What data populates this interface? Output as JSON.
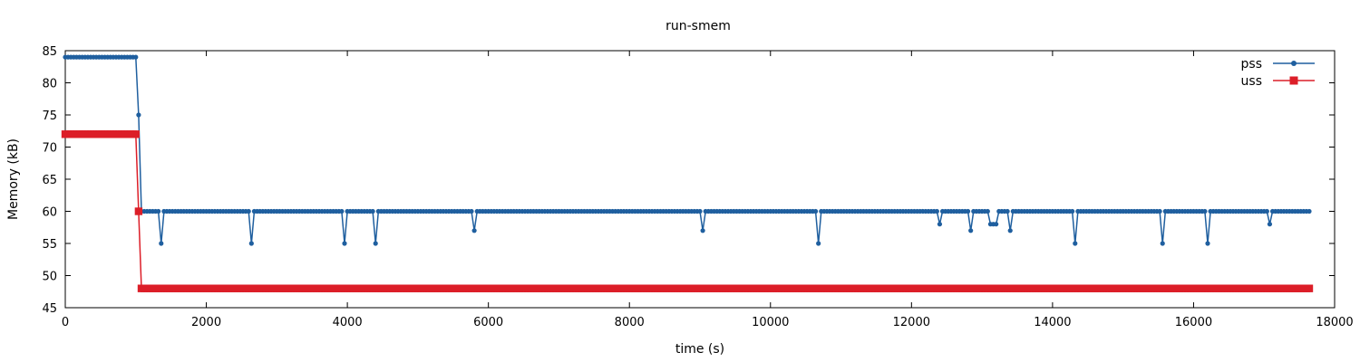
{
  "chart_data": {
    "type": "line",
    "title": "run-smem",
    "xlabel": "time (s)",
    "ylabel": "Memory (kB)",
    "xlim": [
      0,
      18000
    ],
    "ylim": [
      45,
      85
    ],
    "xticks": [
      "0",
      "2000",
      "4000",
      "6000",
      "8000",
      "10000",
      "12000",
      "14000",
      "16000",
      "18000"
    ],
    "yticks": [
      "45",
      "50",
      "55",
      "60",
      "65",
      "70",
      "75",
      "80",
      "85"
    ],
    "grid": false,
    "legend_position": "top-right",
    "series": [
      {
        "name": "pss",
        "color": "#1f5f9f",
        "marker": "circle",
        "step": 40,
        "start": 0,
        "end": 17640,
        "segments": [
          {
            "from": 0,
            "to": 1000,
            "value": 84
          },
          {
            "from": 1040,
            "to": 1040,
            "value": 75
          },
          {
            "from": 1080,
            "to": 17640,
            "value": 60
          }
        ],
        "dips": [
          {
            "x": 1360,
            "value": 55
          },
          {
            "x": 2640,
            "value": 55
          },
          {
            "x": 3960,
            "value": 55
          },
          {
            "x": 4400,
            "value": 55
          },
          {
            "x": 5800,
            "value": 57
          },
          {
            "x": 9040,
            "value": 57
          },
          {
            "x": 10680,
            "value": 55
          },
          {
            "x": 12400,
            "value": 58
          },
          {
            "x": 12840,
            "value": 57
          },
          {
            "x": 13120,
            "value": 58
          },
          {
            "x": 13160,
            "value": 58
          },
          {
            "x": 13200,
            "value": 58
          },
          {
            "x": 13400,
            "value": 57
          },
          {
            "x": 14320,
            "value": 55
          },
          {
            "x": 15560,
            "value": 55
          },
          {
            "x": 16200,
            "value": 55
          },
          {
            "x": 17080,
            "value": 58
          }
        ]
      },
      {
        "name": "uss",
        "color": "#dc1e28",
        "marker": "square",
        "step": 40,
        "start": 0,
        "end": 17640,
        "segments": [
          {
            "from": 0,
            "to": 1000,
            "value": 72
          },
          {
            "from": 1040,
            "to": 1040,
            "value": 60
          },
          {
            "from": 1080,
            "to": 17640,
            "value": 48
          }
        ],
        "dips": []
      }
    ]
  }
}
